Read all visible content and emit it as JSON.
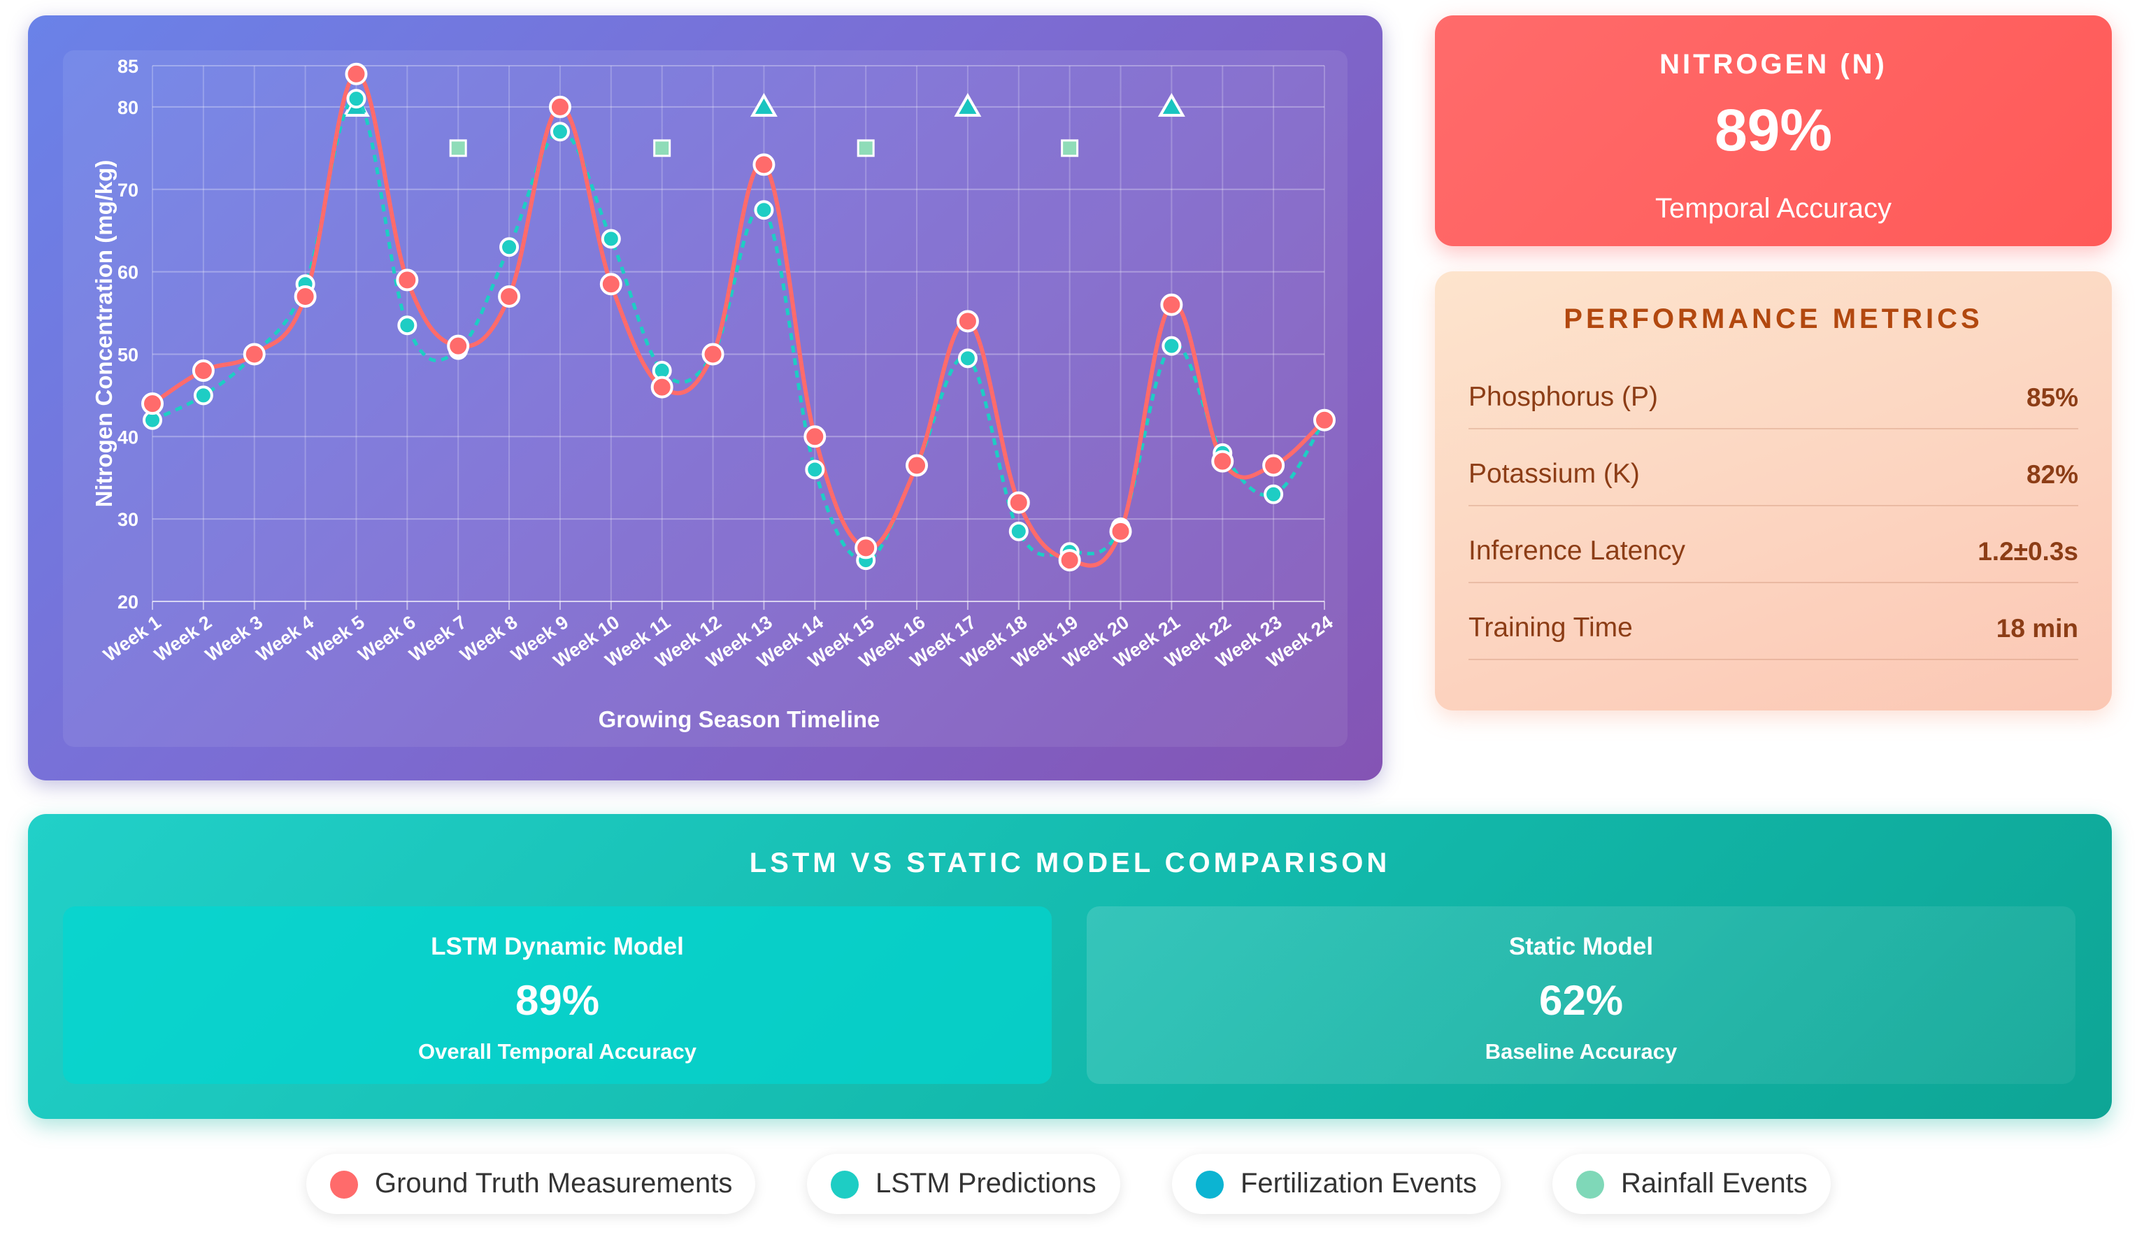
{
  "chart_data": {
    "type": "line",
    "xlabel": "Growing Season Timeline",
    "ylabel": "Nitrogen Concentration (mg/kg)",
    "ylim": [
      20,
      85
    ],
    "yticks": [
      20,
      30,
      40,
      50,
      60,
      70,
      80,
      85
    ],
    "grid": true,
    "categories": [
      "Week 1",
      "Week 2",
      "Week 3",
      "Week 4",
      "Week 5",
      "Week 6",
      "Week 7",
      "Week 8",
      "Week 9",
      "Week 10",
      "Week 11",
      "Week 12",
      "Week 13",
      "Week 14",
      "Week 15",
      "Week 16",
      "Week 17",
      "Week 18",
      "Week 19",
      "Week 20",
      "Week 21",
      "Week 22",
      "Week 23",
      "Week 24"
    ],
    "series": [
      {
        "name": "Ground Truth Measurements",
        "style": "solid",
        "color": "#ff6b6b",
        "values": [
          44,
          48,
          50,
          57,
          84,
          59,
          51,
          57,
          80,
          58.5,
          46,
          50,
          73,
          40,
          26.5,
          36.5,
          54,
          32,
          25,
          28.5,
          56,
          37,
          36.5,
          42
        ]
      },
      {
        "name": "LSTM Predictions",
        "style": "dashed",
        "color": "#1ecdc4",
        "values": [
          42,
          45,
          50,
          58.5,
          81,
          53.5,
          50.5,
          63,
          77,
          64,
          48,
          50,
          67.5,
          36,
          25,
          36.5,
          49.5,
          28.5,
          26,
          29,
          51,
          38,
          33,
          42
        ]
      }
    ],
    "events": [
      {
        "name": "Fertilization Events",
        "marker": "triangle",
        "y": 80,
        "weeks": [
          "Week 5",
          "Week 13",
          "Week 17",
          "Week 21"
        ]
      },
      {
        "name": "Rainfall Events",
        "marker": "square",
        "y": 75,
        "weeks": [
          "Week 7",
          "Week 11",
          "Week 15",
          "Week 19"
        ]
      }
    ]
  },
  "nitrogen": {
    "title": "NITROGEN (N)",
    "value": "89%",
    "subtitle": "Temporal Accuracy"
  },
  "metrics": {
    "title": "PERFORMANCE METRICS",
    "rows": [
      {
        "label": "Phosphorus (P)",
        "value": "85%"
      },
      {
        "label": "Potassium (K)",
        "value": "82%"
      },
      {
        "label": "Inference Latency",
        "value": "1.2±0.3s"
      },
      {
        "label": "Training Time",
        "value": "18 min"
      }
    ]
  },
  "comparison": {
    "title": "LSTM VS STATIC MODEL COMPARISON",
    "lstm": {
      "name": "LSTM Dynamic Model",
      "value": "89%",
      "desc": "Overall Temporal Accuracy"
    },
    "static": {
      "name": "Static Model",
      "value": "62%",
      "desc": "Baseline Accuracy"
    }
  },
  "legend": [
    {
      "label": "Ground Truth Measurements",
      "color": "#ff6b6b"
    },
    {
      "label": "LSTM Predictions",
      "color": "#1ecdc4"
    },
    {
      "label": "Fertilization Events",
      "color": "#0cb4d2"
    },
    {
      "label": "Rainfall Events",
      "color": "#7fd8b8"
    }
  ],
  "colors": {
    "fertilization": "#19c4c0",
    "rainfall": "#8fdcb8",
    "white": "#ffffff"
  }
}
